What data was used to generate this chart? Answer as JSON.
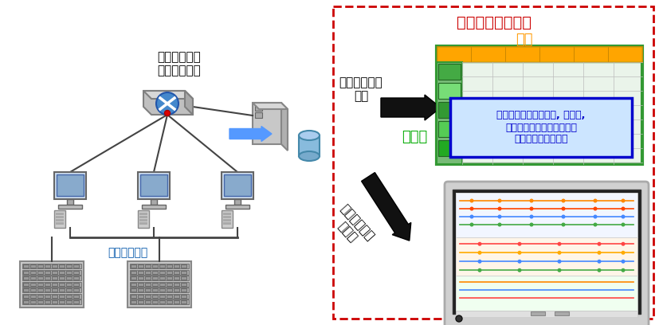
{
  "title": "今回開発した技術",
  "title_color": "#cc0000",
  "title_fontsize": 14,
  "bg_color": "#ffffff",
  "left_label_network": "ネットワーク\nモニタリング",
  "left_label_control": "制御システム",
  "right_label_traffic_analysis": "トラフィック\n分析",
  "right_label_traffic_viz": "トラフィック\n可視化",
  "right_label_destination": "宛先",
  "right_label_source": "送信元",
  "anomaly_text": "通信内容（プロトコル, ポート,\n頻度）の正常状態との差分\nによって異常を検知",
  "dashed_box_color": "#cc0000",
  "destination_color": "#ff9900",
  "source_color": "#00aa00",
  "anomaly_box_color": "#0000cc",
  "anomaly_bg_color": "#cce5ff",
  "table_border_color": "#339933",
  "table_header_color": "#ffa500",
  "arrow_color": "#000000",
  "blue_arrow_color": "#5599ff"
}
